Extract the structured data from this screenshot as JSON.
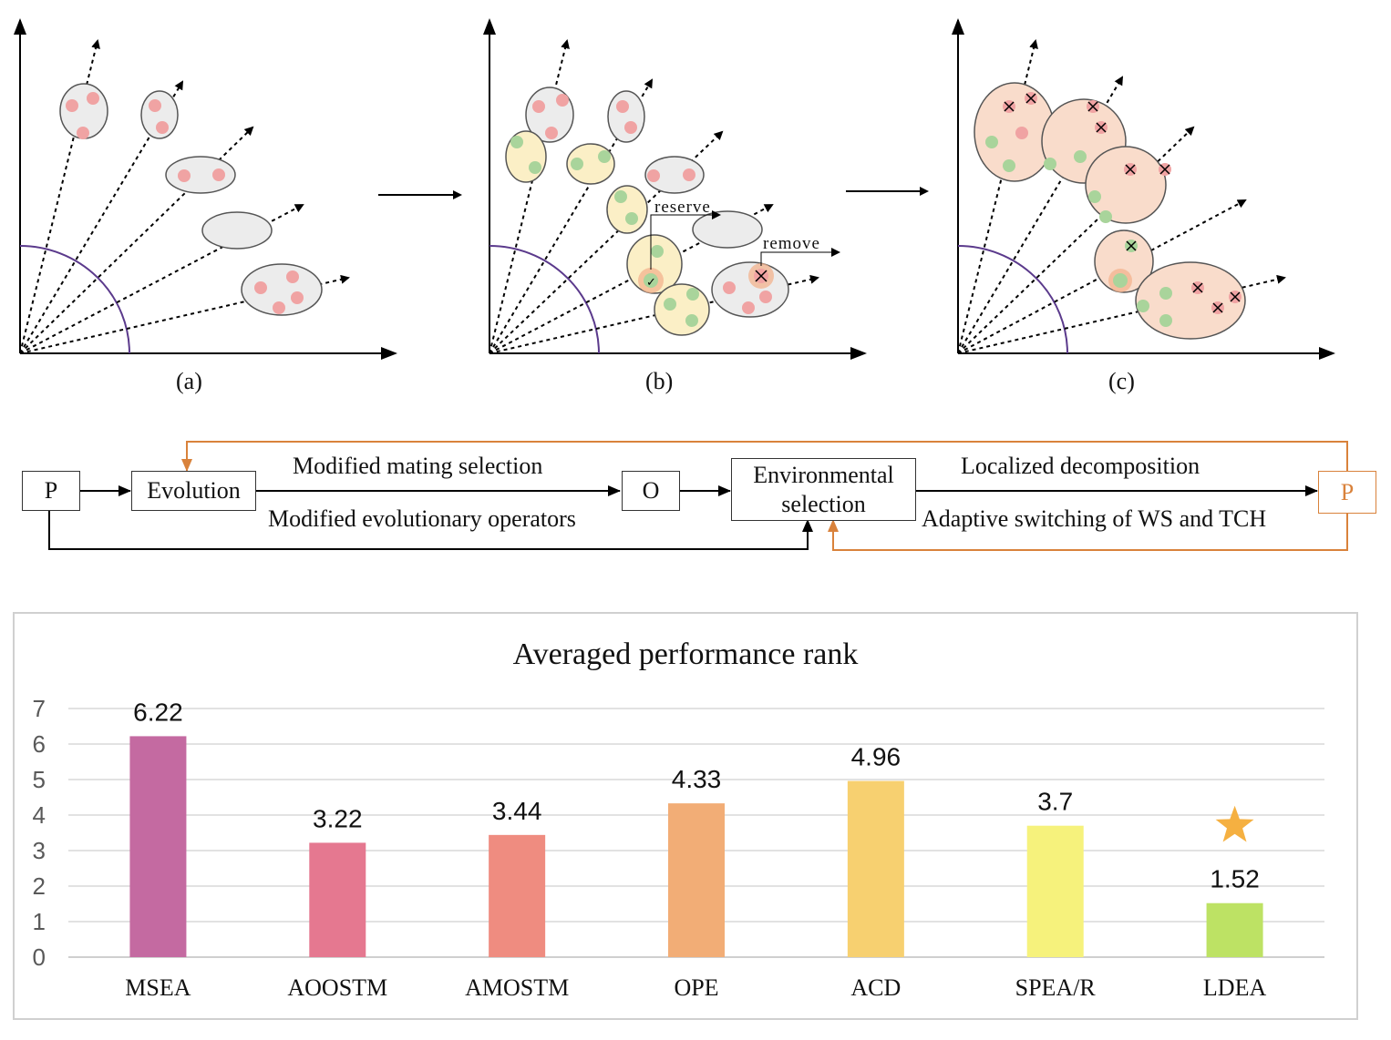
{
  "panels": [
    {
      "caption": "(a)"
    },
    {
      "caption": "(b)",
      "reserve_label": "reserve",
      "remove_label": "remove"
    },
    {
      "caption": "(c)"
    }
  ],
  "flow": {
    "p_start": "P",
    "evolution": "Evolution",
    "offspring": "O",
    "env_line1": "Environmental",
    "env_line2": "selection",
    "p_end": "P",
    "mating_label": "Modified mating selection",
    "operators_label": "Modified evolutionary operators",
    "localized_label": "Localized decomposition",
    "switching_label": "Adaptive switching of WS and TCH",
    "feedback_color": "#d9823b"
  },
  "chart_data": {
    "type": "bar",
    "title": "Averaged performance rank",
    "categories": [
      "MSEA",
      "AOOSTM",
      "AMOSTM",
      "OPE",
      "ACD",
      "SPEA/R",
      "LDEA"
    ],
    "values": [
      6.22,
      3.22,
      3.44,
      4.33,
      4.96,
      3.7,
      1.52
    ],
    "value_labels": [
      "6.22",
      "3.22",
      "3.44",
      "4.33",
      "4.96",
      "3.7",
      "1.52"
    ],
    "colors": [
      "#c46aa1",
      "#e57890",
      "#ef8c80",
      "#f2ad76",
      "#f7d070",
      "#f6f27c",
      "#bde264"
    ],
    "yticks": [
      "0",
      "1",
      "2",
      "3",
      "4",
      "5",
      "6",
      "7"
    ],
    "ylim": [
      0,
      7
    ],
    "grid": true,
    "marker": "star",
    "marker_color": "#f5b041",
    "marker_category": "LDEA"
  }
}
